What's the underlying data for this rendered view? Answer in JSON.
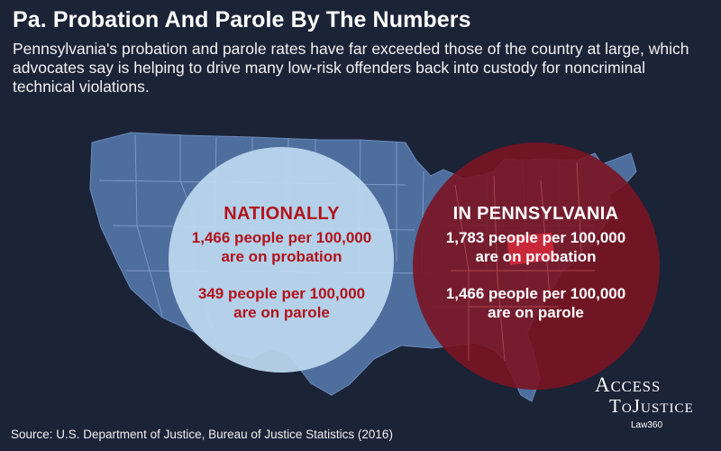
{
  "title": "Pa. Probation And Parole By The Numbers",
  "subtitle": "Pennsylvania's probation and parole rates have far exceeded those of the country at large, which advocates say is helping to drive many low-risk offenders back into custody for noncriminal technical violations.",
  "national": {
    "heading": "NATIONALLY",
    "probation_line1": "1,466 people per 100,000",
    "probation_line2": "are on probation",
    "parole_line1": "349 people per 100,000",
    "parole_line2": "are on parole"
  },
  "pennsylvania": {
    "heading": "IN PENNSYLVANIA",
    "probation_line1": "1,783 people per 100,000",
    "probation_line2": "are on probation",
    "parole_line1": "1,466 people per 100,000",
    "parole_line2": "are on parole"
  },
  "source": "Source: U.S. Department of Justice, Bureau of Justice Statistics (2016)",
  "logo": {
    "a": "A",
    "ccess": "CCESS",
    "to_t": "T",
    "to_o": "O",
    "justice_j": "J",
    "justice_rest": "USTICE",
    "law": "Law360"
  },
  "colors": {
    "background": "#1b2337",
    "map_fill": "#4e6e9e",
    "national_circle": "#bcd8ef",
    "pennsylvania_circle": "#7a1422",
    "pennsylvania_state": "#c8283a",
    "national_text": "#b2121c"
  }
}
